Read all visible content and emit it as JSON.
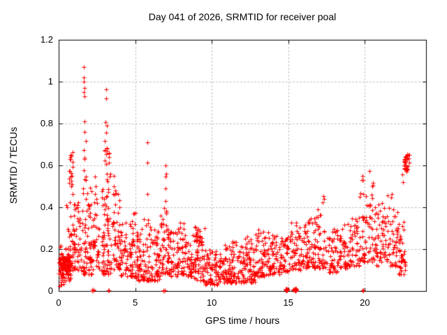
{
  "figure": {
    "title": "Day 041 of 2026, SRMTID for receiver poal"
  },
  "chart_data": {
    "type": "scatter",
    "title": "Day 041 of 2026, SRMTID for receiver poal",
    "xlabel": "GPS time / hours",
    "ylabel": "SRMTID / TECUs",
    "xlim": [
      0,
      24
    ],
    "ylim": [
      0,
      1.2
    ],
    "xticks": {
      "values": [
        0,
        5,
        10,
        15,
        20
      ],
      "labels": [
        "0",
        "5",
        "10",
        "15",
        "20"
      ]
    },
    "yticks": {
      "values": [
        0,
        0.2,
        0.4,
        0.6,
        0.8,
        1.0,
        1.2
      ],
      "labels": [
        "0",
        "0.2",
        "0.4",
        "0.6",
        "0.8",
        "1",
        "1.2"
      ]
    },
    "grid": true,
    "grid_style": "dashed",
    "legend": "none",
    "marker": "plus",
    "marker_size_px": 7,
    "colors": {
      "marker": "#ff0000",
      "grid": "#a8a8a8",
      "border": "#000000",
      "background": "#ffffff",
      "text": "#000000"
    },
    "series_name": "SRMTID",
    "representation": "density_clusters_plus_outliers",
    "cluster_format": [
      "x_start_h",
      "x_end_h",
      "y_min_TECU",
      "y_max_TECU",
      "count",
      "bottom_bias_exp",
      "n_columns"
    ],
    "density_clusters": [
      [
        0.05,
        0.6,
        0.02,
        0.08,
        12,
        1,
        0
      ],
      [
        0.0,
        0.75,
        0.08,
        0.16,
        100,
        1,
        0
      ],
      [
        0.05,
        0.8,
        0.05,
        0.22,
        40,
        1,
        0
      ],
      [
        0.55,
        1.05,
        0.1,
        0.48,
        45,
        2.0,
        6
      ],
      [
        0.65,
        0.98,
        0.5,
        0.67,
        18,
        1,
        5
      ],
      [
        1.0,
        1.5,
        0.1,
        0.44,
        40,
        1.8,
        6
      ],
      [
        1.55,
        2.15,
        0.08,
        0.5,
        70,
        1.8,
        8
      ],
      [
        1.6,
        1.82,
        0.52,
        0.72,
        8,
        1,
        4
      ],
      [
        2.2,
        2.65,
        0.1,
        0.4,
        32,
        1.6,
        6
      ],
      [
        2.8,
        3.45,
        0.08,
        0.5,
        75,
        1.7,
        8
      ],
      [
        2.98,
        3.4,
        0.52,
        0.73,
        18,
        1,
        6
      ],
      [
        3.5,
        4.0,
        0.1,
        0.47,
        45,
        1.7,
        7
      ],
      [
        4.0,
        4.6,
        0.07,
        0.33,
        42,
        1.5,
        7
      ],
      [
        4.6,
        5.05,
        0.07,
        0.38,
        45,
        1.7,
        6
      ],
      [
        5.05,
        5.55,
        0.05,
        0.3,
        50,
        1.5,
        7
      ],
      [
        5.55,
        6.15,
        0.05,
        0.35,
        48,
        1.7,
        8
      ],
      [
        6.15,
        6.65,
        0.05,
        0.3,
        45,
        1.5,
        7
      ],
      [
        6.65,
        7.15,
        0.08,
        0.42,
        42,
        1.6,
        6
      ],
      [
        7.15,
        7.75,
        0.07,
        0.3,
        45,
        1.5,
        8
      ],
      [
        7.75,
        8.35,
        0.08,
        0.33,
        48,
        1.5,
        8
      ],
      [
        8.35,
        8.85,
        0.07,
        0.28,
        40,
        1.5,
        7
      ],
      [
        8.85,
        9.55,
        0.05,
        0.31,
        60,
        1.7,
        9
      ],
      [
        8.9,
        9.25,
        0.22,
        0.31,
        15,
        1,
        4
      ],
      [
        9.55,
        10.45,
        0.03,
        0.2,
        75,
        1.4,
        12
      ],
      [
        10.45,
        11.25,
        0.04,
        0.22,
        65,
        1.4,
        11
      ],
      [
        11.25,
        12.15,
        0.04,
        0.24,
        70,
        1.5,
        12
      ],
      [
        12.15,
        12.85,
        0.04,
        0.26,
        60,
        1.5,
        10
      ],
      [
        12.85,
        13.7,
        0.07,
        0.3,
        65,
        1.5,
        11
      ],
      [
        13.7,
        14.45,
        0.08,
        0.27,
        55,
        1.4,
        10
      ],
      [
        14.45,
        15.1,
        0.09,
        0.26,
        45,
        1.4,
        9
      ],
      [
        15.1,
        15.95,
        0.1,
        0.33,
        55,
        1.5,
        10
      ],
      [
        15.95,
        16.65,
        0.11,
        0.35,
        52,
        1.5,
        9
      ],
      [
        16.65,
        17.45,
        0.11,
        0.4,
        58,
        1.6,
        10
      ],
      [
        17.45,
        18.25,
        0.09,
        0.3,
        50,
        1.5,
        10
      ],
      [
        18.25,
        19.05,
        0.11,
        0.33,
        52,
        1.5,
        10
      ],
      [
        19.05,
        19.65,
        0.12,
        0.36,
        42,
        1.5,
        8
      ],
      [
        19.65,
        20.05,
        0.14,
        0.55,
        32,
        1.8,
        5
      ],
      [
        20.05,
        20.55,
        0.14,
        0.58,
        36,
        1.8,
        6
      ],
      [
        20.55,
        21.05,
        0.12,
        0.43,
        36,
        1.6,
        6
      ],
      [
        21.05,
        21.65,
        0.14,
        0.46,
        40,
        1.6,
        7
      ],
      [
        21.65,
        22.15,
        0.12,
        0.5,
        36,
        1.7,
        6
      ],
      [
        22.15,
        22.65,
        0.08,
        0.36,
        42,
        1.4,
        6
      ],
      [
        22.55,
        22.95,
        0.57,
        0.66,
        32,
        1,
        6
      ],
      [
        2.18,
        2.3,
        0.0,
        0.01,
        4,
        1,
        2
      ],
      [
        3.22,
        3.28,
        0.0,
        0.005,
        2,
        1,
        1
      ],
      [
        6.82,
        6.97,
        0.0,
        0.005,
        4,
        1,
        2
      ],
      [
        14.82,
        15.0,
        0.0,
        0.012,
        14,
        1,
        3
      ],
      [
        15.3,
        15.55,
        0.0,
        0.012,
        14,
        1,
        3
      ],
      [
        19.82,
        19.92,
        0.0,
        0.005,
        3,
        1,
        1
      ]
    ],
    "outlier_points": [
      [
        1.63,
        1.07
      ],
      [
        1.66,
        1.02
      ],
      [
        1.64,
        1.0
      ],
      [
        1.69,
        0.97
      ],
      [
        1.66,
        0.95
      ],
      [
        1.71,
        0.93
      ],
      [
        1.67,
        0.81
      ],
      [
        1.7,
        0.76
      ],
      [
        3.1,
        0.965
      ],
      [
        3.11,
        0.92
      ],
      [
        3.06,
        0.805
      ],
      [
        3.16,
        0.79
      ],
      [
        3.1,
        0.755
      ],
      [
        5.81,
        0.71
      ],
      [
        5.81,
        0.615
      ],
      [
        5.81,
        0.465
      ],
      [
        5.86,
        0.34
      ],
      [
        7.0,
        0.6
      ],
      [
        7.01,
        0.56
      ],
      [
        7.0,
        0.545
      ],
      [
        6.97,
        0.49
      ],
      [
        6.99,
        0.43
      ],
      [
        7.01,
        0.37
      ],
      [
        0.52,
        0.41
      ],
      [
        0.55,
        0.4
      ],
      [
        2.38,
        0.545
      ],
      [
        2.42,
        0.5
      ],
      [
        2.35,
        0.465
      ],
      [
        2.47,
        0.44
      ],
      [
        2.33,
        0.425
      ],
      [
        2.5,
        0.42
      ],
      [
        3.6,
        0.55
      ],
      [
        3.62,
        0.5
      ],
      [
        3.7,
        0.48
      ],
      [
        3.57,
        0.465
      ],
      [
        3.66,
        0.46
      ],
      [
        17.3,
        0.455
      ],
      [
        17.35,
        0.44
      ],
      [
        17.25,
        0.425
      ],
      [
        22.45,
        0.555
      ],
      [
        22.5,
        0.52
      ],
      [
        20.3,
        0.575
      ],
      [
        19.85,
        0.55
      ],
      [
        19.9,
        0.53
      ]
    ]
  }
}
